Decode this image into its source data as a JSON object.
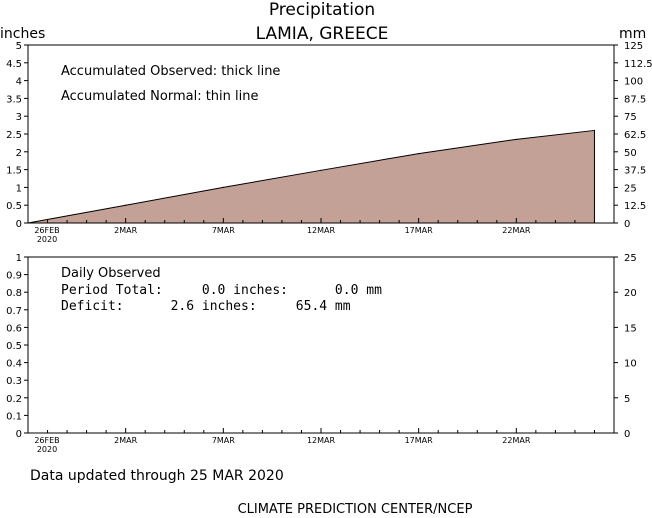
{
  "chart_data": [
    {
      "type": "area",
      "title": "Precipitation",
      "subtitle": "LAMIA, GREECE",
      "ylabel_left": "inches",
      "ylabel_right": "mm",
      "ylim": [
        0,
        5
      ],
      "ylim_right": [
        0,
        125
      ],
      "yticks_left": [
        "0",
        "0.5",
        "1",
        "1.5",
        "2",
        "2.5",
        "3",
        "3.5",
        "4",
        "4.5",
        "5"
      ],
      "yticks_right": [
        "0",
        "12.5",
        "25",
        "37.5",
        "50",
        "62.5",
        "75",
        "87.5",
        "100",
        "112.5",
        "125"
      ],
      "xlim": [
        0,
        30
      ],
      "xticks": [
        {
          "day": 0,
          "label": "26FEB",
          "sublabel": "2020"
        },
        {
          "day": 5,
          "label": "2MAR"
        },
        {
          "day": 10,
          "label": "7MAR"
        },
        {
          "day": 15,
          "label": "12MAR"
        },
        {
          "day": 20,
          "label": "17MAR"
        },
        {
          "day": 25,
          "label": "22MAR"
        }
      ],
      "annotations": [
        "Accumulated Observed: thick line",
        "Accumulated Normal: thin line"
      ],
      "series": [
        {
          "x": [
            0,
            5,
            10,
            15,
            20,
            25,
            29
          ],
          "values": [
            0,
            0.5,
            1.0,
            1.48,
            1.95,
            2.35,
            2.6
          ],
          "color": "#c4a197"
        }
      ]
    },
    {
      "type": "bar",
      "ylim": [
        0,
        1
      ],
      "ylim_right": [
        0,
        25
      ],
      "yticks_left": [
        "0",
        "0.1",
        "0.2",
        "0.3",
        "0.4",
        "0.5",
        "0.6",
        "0.7",
        "0.8",
        "0.9",
        "1"
      ],
      "yticks_right": [
        "0",
        "5",
        "10",
        "15",
        "20",
        "25"
      ],
      "xlim": [
        0,
        30
      ],
      "xticks": [
        {
          "day": 0,
          "label": "26FEB",
          "sublabel": "2020"
        },
        {
          "day": 5,
          "label": "2MAR"
        },
        {
          "day": 10,
          "label": "7MAR"
        },
        {
          "day": 15,
          "label": "12MAR"
        },
        {
          "day": 20,
          "label": "17MAR"
        },
        {
          "day": 25,
          "label": "22MAR"
        }
      ],
      "annotations": [
        "Daily Observed",
        "Period Total:     0.0 inches:      0.0 mm",
        "Deficit:      2.6 inches:     65.4 mm"
      ],
      "series": [
        {
          "x": [],
          "values": []
        }
      ]
    }
  ],
  "footer": {
    "updated": "Data updated through 25 MAR 2020",
    "credit": "CLIMATE PREDICTION CENTER/NCEP"
  }
}
